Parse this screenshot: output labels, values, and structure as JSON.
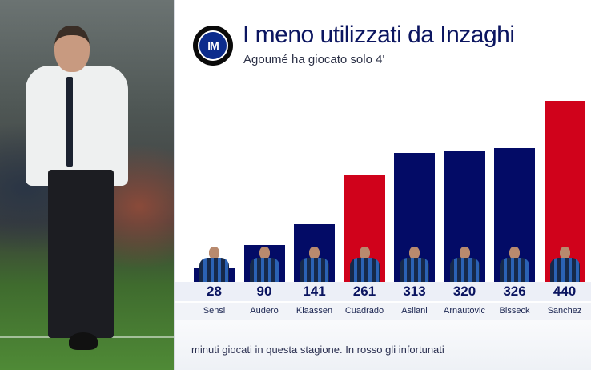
{
  "header": {
    "logo_icon": "inter-logo-icon",
    "logo_text": "IM",
    "title": "I meno utilizzati da Inzaghi",
    "subtitle": "Agoumé ha giocato solo 4'"
  },
  "footnote": "minuti giocati in questa stagione. In rosso gli infortunati",
  "colors": {
    "healthy": "#030b66",
    "injured": "#d0021b",
    "title": "#0b1560"
  },
  "players": [
    {
      "name": "Sensi",
      "minutes": "28",
      "injured": false
    },
    {
      "name": "Audero",
      "minutes": "90",
      "injured": false
    },
    {
      "name": "Klaassen",
      "minutes": "141",
      "injured": false
    },
    {
      "name": "Cuadrado",
      "minutes": "261",
      "injured": true
    },
    {
      "name": "Asllani",
      "minutes": "313",
      "injured": false
    },
    {
      "name": "Arnautovic",
      "minutes": "320",
      "injured": false
    },
    {
      "name": "Bisseck",
      "minutes": "326",
      "injured": false
    },
    {
      "name": "Sanchez",
      "minutes": "440",
      "injured": true
    }
  ],
  "chart_data": {
    "type": "bar",
    "title": "I meno utilizzati da Inzaghi",
    "subtitle": "Agoumé ha giocato solo 4'",
    "categories": [
      "Sensi",
      "Audero",
      "Klaassen",
      "Cuadrado",
      "Asllani",
      "Arnautovic",
      "Bisseck",
      "Sanchez"
    ],
    "values": [
      28,
      90,
      141,
      261,
      313,
      320,
      326,
      440
    ],
    "bar_colors": [
      "#030b66",
      "#030b66",
      "#030b66",
      "#d0021b",
      "#030b66",
      "#030b66",
      "#030b66",
      "#d0021b"
    ],
    "legend_note": "minuti giocati in questa stagione. In rosso gli infortunati",
    "xlabel": "",
    "ylabel": "minuti giocati",
    "grid": false,
    "data_labels": true
  }
}
